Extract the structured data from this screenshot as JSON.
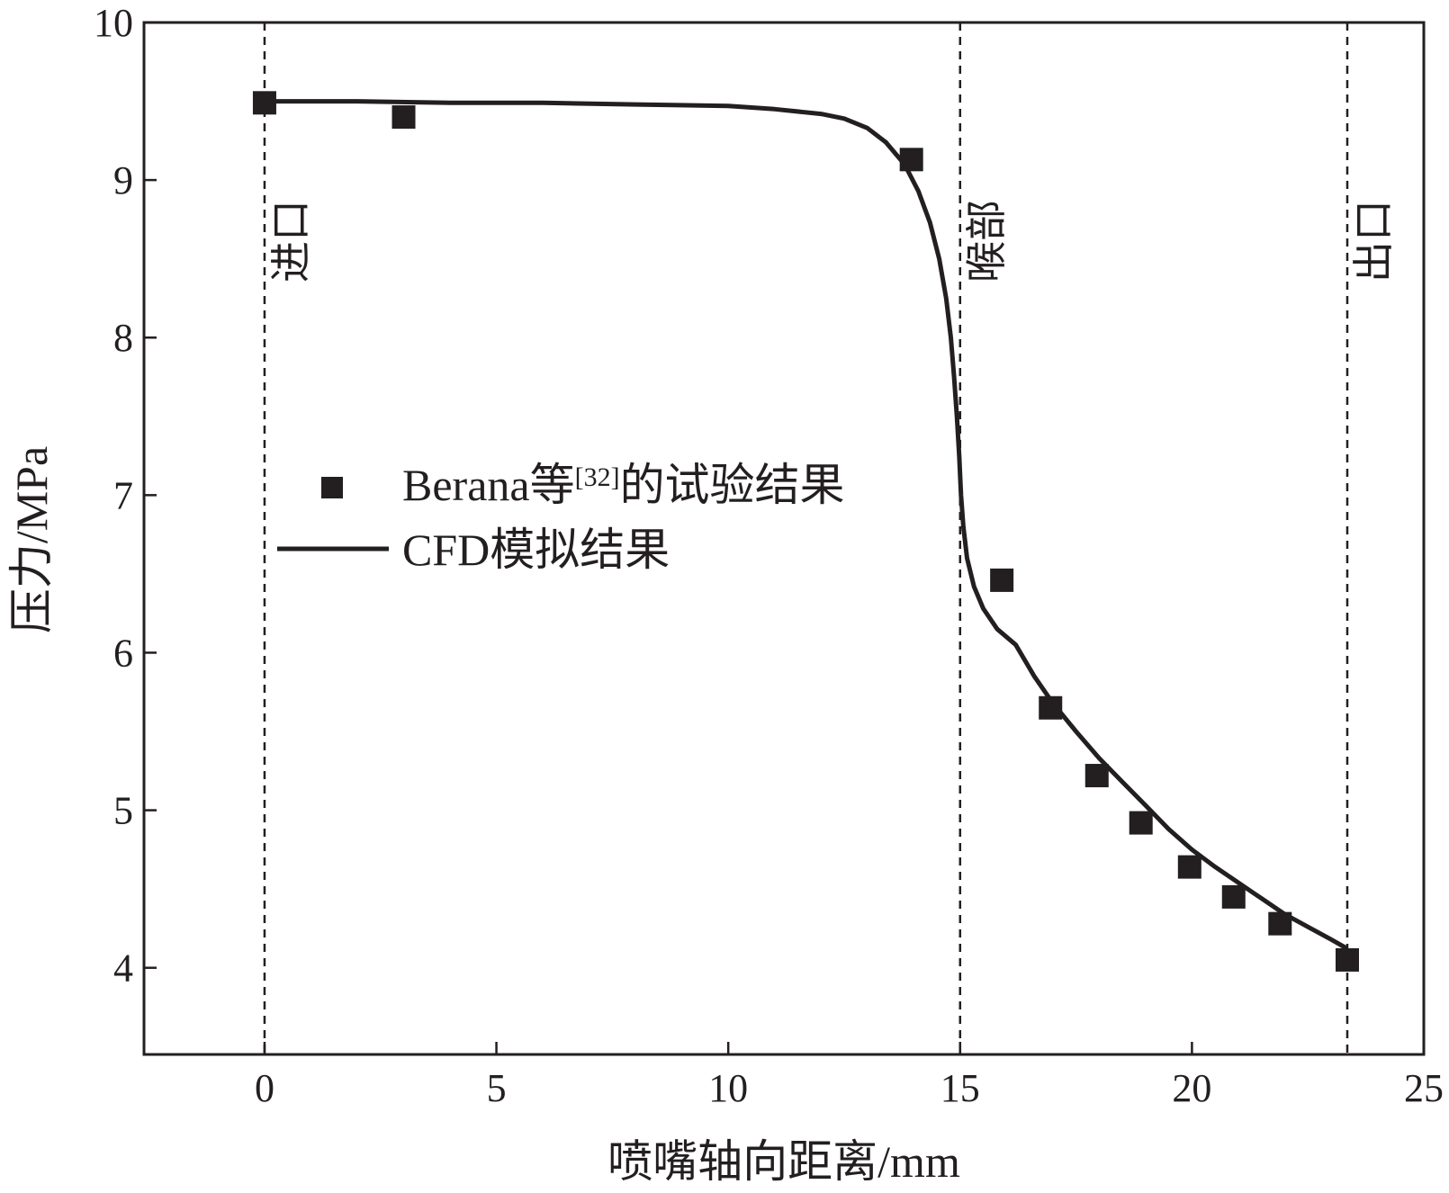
{
  "chart_data": {
    "type": "line",
    "xlabel": "喷嘴轴向距离/mm",
    "ylabel": "压力/MPa",
    "xlim": [
      -2.6,
      25
    ],
    "ylim": [
      3.45,
      10
    ],
    "xticks": [
      0,
      5,
      10,
      15,
      20,
      25
    ],
    "yticks": [
      4,
      5,
      6,
      7,
      8,
      9,
      10
    ],
    "grid": false,
    "legend_placement": "center-left",
    "colors": {
      "ink": "#231f20",
      "background": "#ffffff"
    },
    "vlines": [
      {
        "x": 0,
        "label": "进口"
      },
      {
        "x": 15,
        "label": "喉部"
      },
      {
        "x": 23.35,
        "label": "出口"
      }
    ],
    "series": [
      {
        "name": "Berana等[32]的试验结果",
        "legend_main": "Berana等",
        "legend_ref": "[32]",
        "legend_tail": "的试验结果",
        "kind": "scatter",
        "marker": "square",
        "x": [
          0,
          3,
          13.95,
          15.9,
          16.95,
          17.95,
          18.9,
          19.95,
          20.9,
          21.9,
          23.35
        ],
        "y": [
          9.49,
          9.4,
          9.13,
          6.46,
          5.65,
          5.22,
          4.92,
          4.64,
          4.45,
          4.28,
          4.05
        ]
      },
      {
        "name": "CFD模拟结果",
        "kind": "line",
        "x": [
          0,
          2,
          4,
          6,
          8,
          10,
          11,
          12,
          12.5,
          13,
          13.4,
          13.8,
          14.1,
          14.35,
          14.55,
          14.7,
          14.8,
          14.87,
          14.93,
          14.98,
          15.02,
          15.07,
          15.15,
          15.3,
          15.5,
          15.8,
          16.2,
          16.6,
          17,
          17.5,
          18,
          18.5,
          19,
          19.5,
          20,
          20.5,
          21,
          21.5,
          22,
          22.5,
          23,
          23.3,
          23.35
        ],
        "y": [
          9.5,
          9.5,
          9.49,
          9.49,
          9.48,
          9.47,
          9.45,
          9.42,
          9.39,
          9.33,
          9.24,
          9.1,
          8.93,
          8.73,
          8.5,
          8.25,
          8.0,
          7.75,
          7.5,
          7.25,
          7.0,
          6.8,
          6.6,
          6.42,
          6.28,
          6.15,
          6.05,
          5.85,
          5.68,
          5.5,
          5.33,
          5.18,
          5.03,
          4.88,
          4.75,
          4.64,
          4.54,
          4.44,
          4.34,
          4.26,
          4.18,
          4.13,
          4.09
        ]
      }
    ]
  }
}
